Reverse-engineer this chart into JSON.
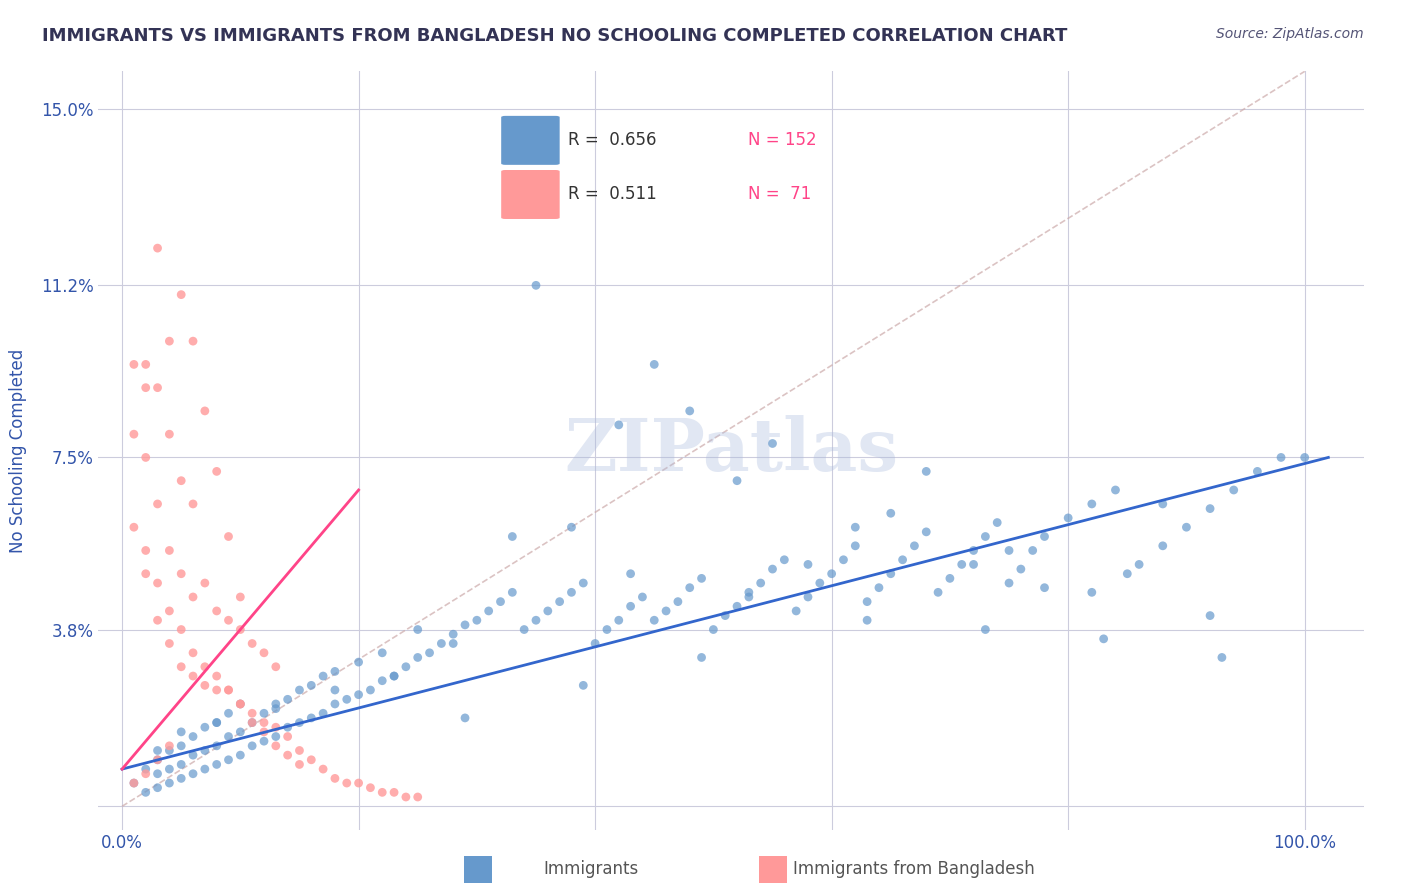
{
  "title": "IMMIGRANTS VS IMMIGRANTS FROM BANGLADESH NO SCHOOLING COMPLETED CORRELATION CHART",
  "source_text": "Source: ZipAtlas.com",
  "xlabel": "",
  "ylabel": "No Schooling Completed",
  "legend_label_blue": "Immigrants",
  "legend_label_pink": "Immigrants from Bangladesh",
  "R_blue": 0.656,
  "N_blue": 152,
  "R_pink": 0.511,
  "N_pink": 71,
  "x_ticks": [
    0.0,
    0.2,
    0.4,
    0.6,
    0.8,
    1.0
  ],
  "x_tick_labels": [
    "0.0%",
    "",
    "",
    "",
    "",
    "100.0%"
  ],
  "y_ticks": [
    0.0,
    0.038,
    0.075,
    0.112,
    0.15
  ],
  "y_tick_labels": [
    "",
    "3.8%",
    "7.5%",
    "11.2%",
    "15.0%"
  ],
  "xlim": [
    -0.02,
    1.05
  ],
  "ylim": [
    -0.005,
    0.158
  ],
  "blue_color": "#6699CC",
  "pink_color": "#FF9999",
  "trend_blue_color": "#3366CC",
  "trend_pink_color": "#FF4488",
  "ref_line_color": "#CCAAAA",
  "grid_color": "#CCCCDD",
  "background_color": "#FFFFFF",
  "watermark": "ZIPatlas",
  "watermark_color": "#AABBDD",
  "title_color": "#333355",
  "source_color": "#555577",
  "axis_label_color": "#3355AA",
  "tick_label_color": "#3355AA",
  "blue_scatter_x": [
    0.01,
    0.02,
    0.02,
    0.03,
    0.03,
    0.03,
    0.04,
    0.04,
    0.04,
    0.05,
    0.05,
    0.05,
    0.05,
    0.06,
    0.06,
    0.06,
    0.07,
    0.07,
    0.07,
    0.08,
    0.08,
    0.08,
    0.09,
    0.09,
    0.09,
    0.1,
    0.1,
    0.1,
    0.11,
    0.11,
    0.12,
    0.12,
    0.13,
    0.13,
    0.14,
    0.14,
    0.15,
    0.15,
    0.16,
    0.16,
    0.17,
    0.17,
    0.18,
    0.18,
    0.19,
    0.2,
    0.2,
    0.21,
    0.22,
    0.22,
    0.23,
    0.24,
    0.25,
    0.25,
    0.26,
    0.27,
    0.28,
    0.29,
    0.3,
    0.31,
    0.32,
    0.33,
    0.34,
    0.35,
    0.36,
    0.37,
    0.38,
    0.39,
    0.4,
    0.41,
    0.42,
    0.43,
    0.44,
    0.45,
    0.46,
    0.47,
    0.48,
    0.49,
    0.5,
    0.51,
    0.52,
    0.53,
    0.54,
    0.55,
    0.56,
    0.57,
    0.58,
    0.59,
    0.6,
    0.61,
    0.62,
    0.63,
    0.64,
    0.65,
    0.66,
    0.67,
    0.68,
    0.69,
    0.7,
    0.71,
    0.72,
    0.73,
    0.74,
    0.75,
    0.76,
    0.77,
    0.78,
    0.8,
    0.82,
    0.84,
    0.86,
    0.88,
    0.9,
    0.92,
    0.94,
    0.96,
    0.98,
    1.0,
    0.35,
    0.45,
    0.55,
    0.65,
    0.75,
    0.85,
    0.42,
    0.52,
    0.62,
    0.72,
    0.82,
    0.92,
    0.38,
    0.58,
    0.78,
    0.48,
    0.68,
    0.88,
    0.28,
    0.18,
    0.08,
    0.33,
    0.43,
    0.53,
    0.63,
    0.73,
    0.83,
    0.93,
    0.23,
    0.13,
    0.03,
    0.29,
    0.39,
    0.49
  ],
  "blue_scatter_y": [
    0.005,
    0.003,
    0.008,
    0.004,
    0.007,
    0.01,
    0.005,
    0.008,
    0.012,
    0.006,
    0.009,
    0.013,
    0.016,
    0.007,
    0.011,
    0.015,
    0.008,
    0.012,
    0.017,
    0.009,
    0.013,
    0.018,
    0.01,
    0.015,
    0.02,
    0.011,
    0.016,
    0.022,
    0.013,
    0.018,
    0.014,
    0.02,
    0.015,
    0.021,
    0.017,
    0.023,
    0.018,
    0.025,
    0.019,
    0.026,
    0.02,
    0.028,
    0.022,
    0.029,
    0.023,
    0.024,
    0.031,
    0.025,
    0.027,
    0.033,
    0.028,
    0.03,
    0.032,
    0.038,
    0.033,
    0.035,
    0.037,
    0.039,
    0.04,
    0.042,
    0.044,
    0.046,
    0.038,
    0.04,
    0.042,
    0.044,
    0.046,
    0.048,
    0.035,
    0.038,
    0.04,
    0.043,
    0.045,
    0.04,
    0.042,
    0.044,
    0.047,
    0.049,
    0.038,
    0.041,
    0.043,
    0.046,
    0.048,
    0.051,
    0.053,
    0.042,
    0.045,
    0.048,
    0.05,
    0.053,
    0.056,
    0.044,
    0.047,
    0.05,
    0.053,
    0.056,
    0.059,
    0.046,
    0.049,
    0.052,
    0.055,
    0.058,
    0.061,
    0.048,
    0.051,
    0.055,
    0.058,
    0.062,
    0.065,
    0.068,
    0.052,
    0.056,
    0.06,
    0.064,
    0.068,
    0.072,
    0.075,
    0.075,
    0.112,
    0.095,
    0.078,
    0.063,
    0.055,
    0.05,
    0.082,
    0.07,
    0.06,
    0.052,
    0.046,
    0.041,
    0.06,
    0.052,
    0.047,
    0.085,
    0.072,
    0.065,
    0.035,
    0.025,
    0.018,
    0.058,
    0.05,
    0.045,
    0.04,
    0.038,
    0.036,
    0.032,
    0.028,
    0.022,
    0.012,
    0.019,
    0.026,
    0.032
  ],
  "pink_scatter_x": [
    0.01,
    0.01,
    0.02,
    0.02,
    0.02,
    0.03,
    0.03,
    0.03,
    0.04,
    0.04,
    0.04,
    0.05,
    0.05,
    0.05,
    0.06,
    0.06,
    0.06,
    0.07,
    0.07,
    0.08,
    0.08,
    0.09,
    0.09,
    0.1,
    0.1,
    0.11,
    0.11,
    0.12,
    0.12,
    0.13,
    0.13,
    0.14,
    0.15,
    0.16,
    0.17,
    0.18,
    0.19,
    0.2,
    0.21,
    0.22,
    0.23,
    0.24,
    0.25,
    0.05,
    0.06,
    0.07,
    0.03,
    0.04,
    0.02,
    0.01,
    0.08,
    0.09,
    0.1,
    0.02,
    0.03,
    0.04,
    0.05,
    0.06,
    0.07,
    0.08,
    0.09,
    0.1,
    0.11,
    0.12,
    0.13,
    0.14,
    0.15,
    0.01,
    0.02,
    0.03,
    0.04
  ],
  "pink_scatter_y": [
    0.06,
    0.08,
    0.05,
    0.075,
    0.095,
    0.04,
    0.065,
    0.09,
    0.035,
    0.055,
    0.08,
    0.03,
    0.05,
    0.07,
    0.028,
    0.045,
    0.065,
    0.026,
    0.048,
    0.025,
    0.042,
    0.025,
    0.04,
    0.022,
    0.038,
    0.02,
    0.035,
    0.018,
    0.033,
    0.017,
    0.03,
    0.015,
    0.012,
    0.01,
    0.008,
    0.006,
    0.005,
    0.005,
    0.004,
    0.003,
    0.003,
    0.002,
    0.002,
    0.11,
    0.1,
    0.085,
    0.12,
    0.1,
    0.09,
    0.095,
    0.072,
    0.058,
    0.045,
    0.055,
    0.048,
    0.042,
    0.038,
    0.033,
    0.03,
    0.028,
    0.025,
    0.022,
    0.018,
    0.016,
    0.013,
    0.011,
    0.009,
    0.005,
    0.007,
    0.01,
    0.013
  ]
}
